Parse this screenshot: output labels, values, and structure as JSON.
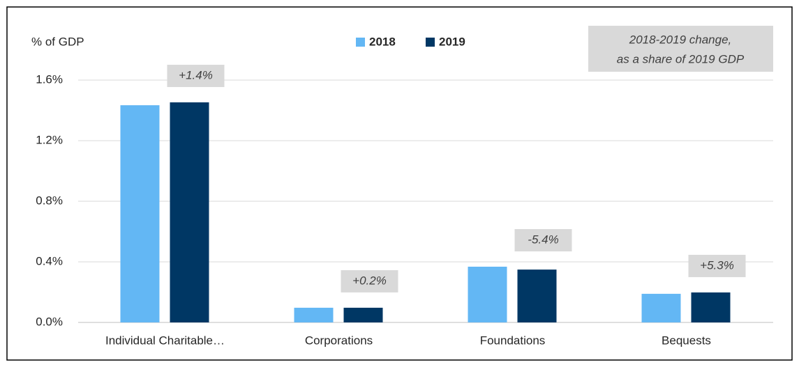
{
  "chart_data": {
    "type": "bar",
    "y_axis_label": "% of GDP",
    "categories": [
      "Individual Charitable…",
      "Corporations",
      "Foundations",
      "Bequests"
    ],
    "series": [
      {
        "name": "2018",
        "color": "#63b7f4",
        "values": [
          1.434,
          0.097,
          0.368,
          0.189
        ]
      },
      {
        "name": "2019",
        "color": "#003764",
        "values": [
          1.453,
          0.097,
          0.349,
          0.198
        ]
      }
    ],
    "change_labels": [
      "+1.4%",
      "+0.2%",
      "-5.4%",
      "+5.3%"
    ],
    "note": [
      "2018-2019 change,",
      "as a share of 2019 GDP"
    ],
    "ylim": [
      0,
      1.6
    ],
    "yticks": [
      {
        "value": 0,
        "label": "0.0%"
      },
      {
        "value": 0.4,
        "label": "0.4%"
      },
      {
        "value": 0.8,
        "label": "0.8%"
      },
      {
        "value": 1.2,
        "label": "1.2%"
      },
      {
        "value": 1.6,
        "label": "1.6%"
      }
    ],
    "grid": true,
    "legend_position": "top"
  }
}
